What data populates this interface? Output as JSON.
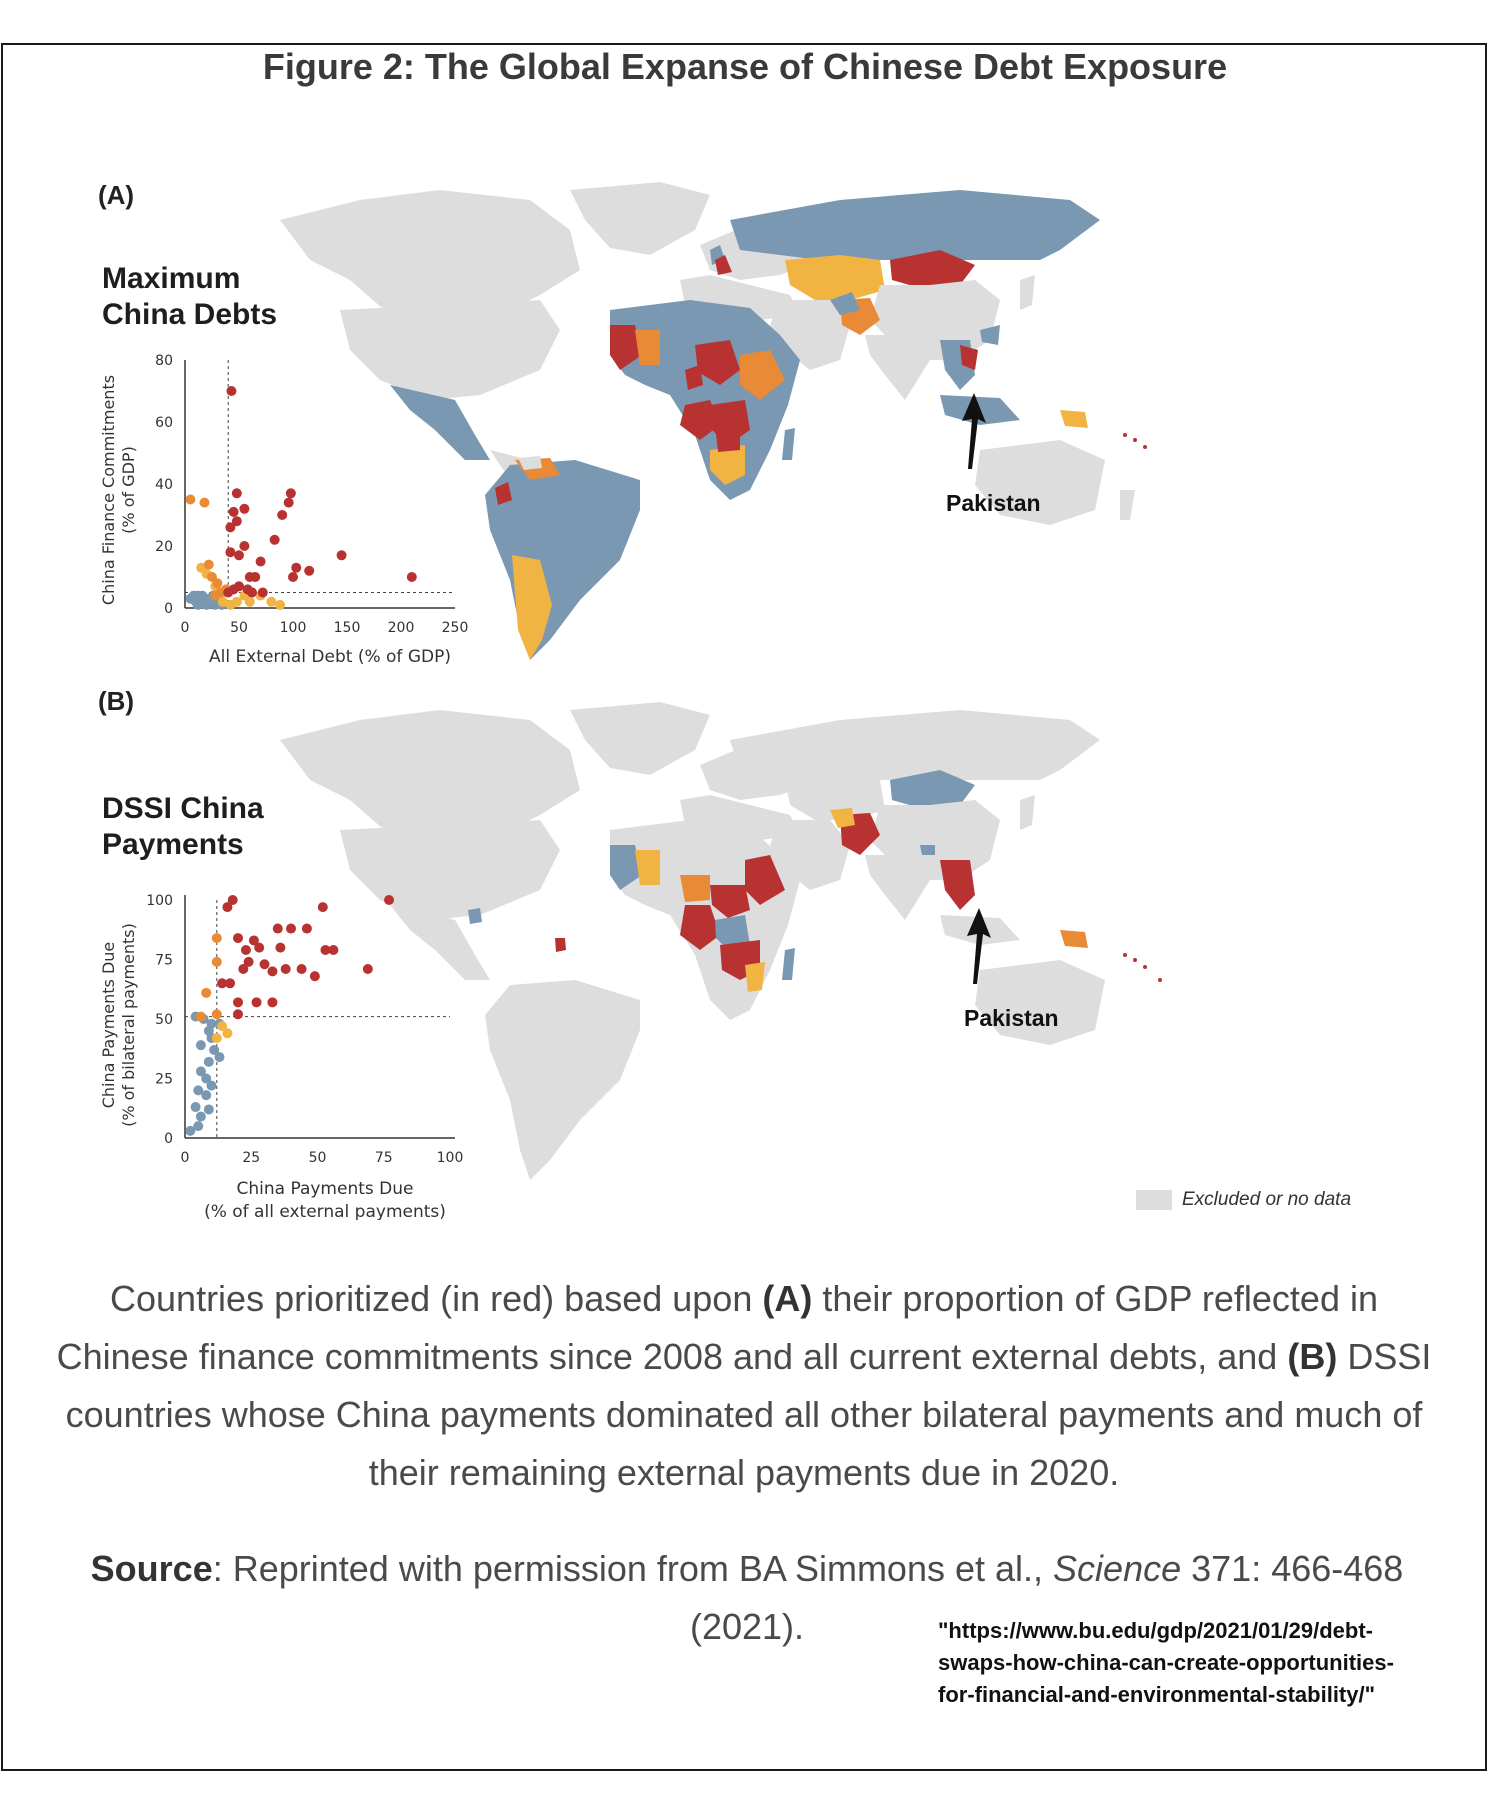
{
  "figure": {
    "title": "Figure 2: The Global Expanse of Chinese Debt Exposure"
  },
  "colors": {
    "red": "#b83232",
    "orange": "#e88a36",
    "yellow": "#f1b443",
    "blue": "#7a98b2",
    "gray": "#dddddd"
  },
  "panel_a": {
    "letter": "(A)",
    "title_line1": "Maximum",
    "title_line2": "China Debts",
    "annotation": "Pakistan"
  },
  "panel_b": {
    "letter": "(B)",
    "title_line1": "DSSI China",
    "title_line2": "Payments",
    "annotation": "Pakistan"
  },
  "legend": {
    "label": "Excluded or no data"
  },
  "caption": {
    "part1": "Countries prioritized (in red) based upon",
    "a": "(A)",
    "part2": "their proportion of GDP reflected in Chinese finance commitments since 2008 and all current external debts, and",
    "b": "(B)",
    "part3": "DSSI countries whose China payments dominated all other bilateral payments and much of their remaining external payments due in 2020."
  },
  "source": {
    "label": "Source",
    "text1": ": Reprinted with permission from BA Simmons et al.,",
    "journal": "Science",
    "text2": "371: 466-468 (2021)."
  },
  "url": {
    "line1": "\"https://www.bu.edu/gdp/2021/01/29/debt-",
    "line2": "swaps-how-china-can-create-opportunities-",
    "line3": "for-financial-and-environmental-stability/\""
  },
  "chart_data": [
    {
      "type": "scatter",
      "title": "Maximum China Debts",
      "xlabel": "All External Debt (% of GDP)",
      "ylabel_line1": "China Finance Commitments",
      "ylabel_line2": "(% of GDP)",
      "xlim": [
        0,
        250
      ],
      "ylim": [
        0,
        80
      ],
      "x_ticks": [
        0,
        50,
        100,
        150,
        200,
        250
      ],
      "y_ticks": [
        0,
        20,
        40,
        60,
        80
      ],
      "reference_lines": {
        "x": 40,
        "y": 5
      },
      "series": [
        {
          "color": "red",
          "points": [
            [
              43,
              70
            ],
            [
              48,
              37
            ],
            [
              55,
              32
            ],
            [
              45,
              31
            ],
            [
              48,
              28
            ],
            [
              98,
              37
            ],
            [
              96,
              34
            ],
            [
              90,
              30
            ],
            [
              42,
              26
            ],
            [
              83,
              22
            ],
            [
              55,
              20
            ],
            [
              42,
              18
            ],
            [
              145,
              17
            ],
            [
              50,
              17
            ],
            [
              70,
              15
            ],
            [
              103,
              13
            ],
            [
              115,
              12
            ],
            [
              210,
              10
            ],
            [
              60,
              10
            ],
            [
              65,
              10
            ],
            [
              100,
              10
            ],
            [
              50,
              7
            ],
            [
              58,
              6
            ],
            [
              45,
              6
            ],
            [
              40,
              5
            ],
            [
              62,
              5
            ],
            [
              72,
              5
            ]
          ]
        },
        {
          "color": "orange",
          "points": [
            [
              5,
              35
            ],
            [
              18,
              34
            ],
            [
              22,
              14
            ],
            [
              25,
              10
            ],
            [
              30,
              8
            ],
            [
              38,
              6
            ],
            [
              33,
              5
            ],
            [
              28,
              4
            ]
          ]
        },
        {
          "color": "yellow",
          "points": [
            [
              15,
              13
            ],
            [
              20,
              11
            ],
            [
              28,
              7
            ],
            [
              35,
              5
            ],
            [
              55,
              4
            ],
            [
              62,
              5
            ],
            [
              70,
              4
            ],
            [
              80,
              2
            ],
            [
              35,
              2
            ],
            [
              42,
              1
            ],
            [
              48,
              2
            ],
            [
              60,
              2
            ],
            [
              88,
              1
            ]
          ]
        },
        {
          "color": "blue",
          "points": [
            [
              5,
              3
            ],
            [
              8,
              4
            ],
            [
              10,
              2
            ],
            [
              12,
              1
            ],
            [
              15,
              3
            ],
            [
              18,
              2
            ],
            [
              20,
              1
            ],
            [
              22,
              3
            ],
            [
              25,
              2
            ],
            [
              28,
              1
            ],
            [
              30,
              3
            ],
            [
              32,
              2
            ],
            [
              12,
              4
            ],
            [
              16,
              4
            ],
            [
              26,
              4
            ],
            [
              34,
              1
            ]
          ]
        }
      ]
    },
    {
      "type": "scatter",
      "title": "DSSI China Payments",
      "xlabel_line1": "China Payments Due",
      "xlabel_line2": "(% of all external payments)",
      "ylabel_line1": "China Payments Due",
      "ylabel_line2": "(% of bilateral payments)",
      "xlim": [
        0,
        100
      ],
      "ylim": [
        0,
        100
      ],
      "x_ticks": [
        0,
        25,
        50,
        75,
        100
      ],
      "y_ticks": [
        0,
        25,
        50,
        75,
        100
      ],
      "reference_lines": {
        "x": 12,
        "y": 51
      },
      "series": [
        {
          "color": "red",
          "points": [
            [
              18,
              100
            ],
            [
              16,
              97
            ],
            [
              52,
              97
            ],
            [
              77,
              100
            ],
            [
              40,
              88
            ],
            [
              46,
              88
            ],
            [
              35,
              88
            ],
            [
              20,
              84
            ],
            [
              26,
              83
            ],
            [
              28,
              80
            ],
            [
              36,
              80
            ],
            [
              23,
              79
            ],
            [
              53,
              79
            ],
            [
              56,
              79
            ],
            [
              24,
              74
            ],
            [
              30,
              73
            ],
            [
              22,
              71
            ],
            [
              38,
              71
            ],
            [
              44,
              71
            ],
            [
              69,
              71
            ],
            [
              33,
              70
            ],
            [
              49,
              68
            ],
            [
              14,
              65
            ],
            [
              17,
              65
            ],
            [
              20,
              57
            ],
            [
              27,
              57
            ],
            [
              33,
              57
            ],
            [
              20,
              52
            ]
          ]
        },
        {
          "color": "orange",
          "points": [
            [
              12,
              84
            ],
            [
              12,
              74
            ],
            [
              8,
              61
            ],
            [
              12,
              52
            ],
            [
              6,
              51
            ]
          ]
        },
        {
          "color": "yellow",
          "points": [
            [
              14,
              47
            ],
            [
              16,
              44
            ],
            [
              12,
              42
            ]
          ]
        },
        {
          "color": "blue",
          "points": [
            [
              4,
              51
            ],
            [
              7,
              50
            ],
            [
              10,
              48
            ],
            [
              13,
              48
            ],
            [
              9,
              45
            ],
            [
              10,
              42
            ],
            [
              6,
              39
            ],
            [
              11,
              37
            ],
            [
              13,
              34
            ],
            [
              9,
              32
            ],
            [
              6,
              28
            ],
            [
              8,
              25
            ],
            [
              10,
              22
            ],
            [
              5,
              20
            ],
            [
              8,
              18
            ],
            [
              4,
              13
            ],
            [
              6,
              9
            ],
            [
              5,
              5
            ],
            [
              2,
              3
            ],
            [
              9,
              12
            ]
          ]
        }
      ]
    }
  ]
}
